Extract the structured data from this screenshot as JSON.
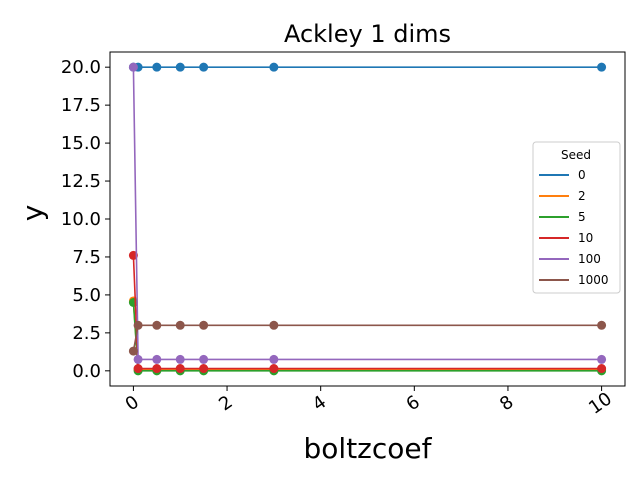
{
  "chart_data": {
    "type": "line",
    "title": "Ackley 1 dims",
    "xlabel": "boltzcoef",
    "ylabel": "y",
    "xlim": [
      -0.5,
      10.5
    ],
    "ylim": [
      -1.0,
      21.0
    ],
    "x_ticks": [
      0,
      2,
      4,
      6,
      8,
      10
    ],
    "y_ticks": [
      0.0,
      2.5,
      5.0,
      7.5,
      10.0,
      12.5,
      15.0,
      17.5,
      20.0
    ],
    "x_tick_labels": [
      "0",
      "2",
      "4",
      "6",
      "8",
      "10"
    ],
    "y_tick_labels": [
      "0.0",
      "2.5",
      "5.0",
      "7.5",
      "10.0",
      "12.5",
      "15.0",
      "17.5",
      "20.0"
    ],
    "grid": false,
    "legend": {
      "title": "Seed",
      "placement": "center-right"
    },
    "x": [
      0.0,
      0.1,
      0.5,
      1.0,
      1.5,
      3.0,
      10.0
    ],
    "series": [
      {
        "name": "0",
        "color": "#1f77b4",
        "values": [
          20.0,
          20.0,
          20.0,
          20.0,
          20.0,
          20.0,
          20.0
        ]
      },
      {
        "name": "2",
        "color": "#ff7f0e",
        "values": [
          4.6,
          0.1,
          0.1,
          0.1,
          0.1,
          0.1,
          0.1
        ]
      },
      {
        "name": "5",
        "color": "#2ca02c",
        "values": [
          4.5,
          0.0,
          0.0,
          0.0,
          0.0,
          0.0,
          0.0
        ]
      },
      {
        "name": "10",
        "color": "#d62728",
        "values": [
          7.6,
          0.15,
          0.15,
          0.15,
          0.15,
          0.15,
          0.15
        ]
      },
      {
        "name": "100",
        "color": "#9467bd",
        "values": [
          20.0,
          0.75,
          0.75,
          0.75,
          0.75,
          0.75,
          0.75
        ]
      },
      {
        "name": "1000",
        "color": "#8c564b",
        "values": [
          1.3,
          3.0,
          3.0,
          3.0,
          3.0,
          3.0,
          3.0
        ]
      }
    ]
  }
}
